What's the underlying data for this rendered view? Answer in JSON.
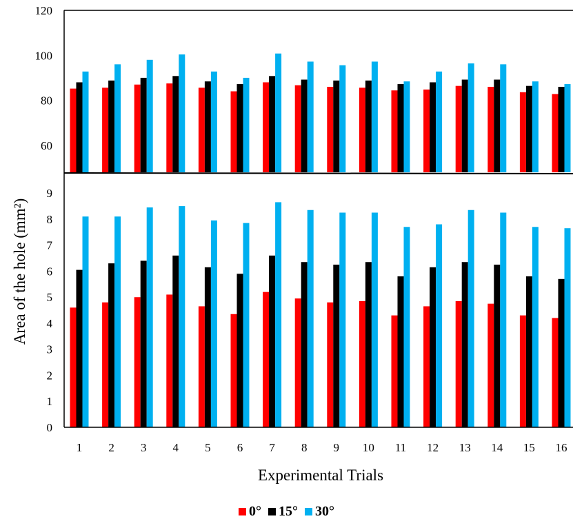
{
  "chart_data": [
    {
      "type": "bar",
      "panel": "upper",
      "categories": [
        "1",
        "2",
        "3",
        "4",
        "5",
        "6",
        "7",
        "8",
        "9",
        "10",
        "11",
        "12",
        "13",
        "14",
        "15",
        "16"
      ],
      "ylim": [
        48,
        120
      ],
      "yticks": [
        "60",
        "80",
        "100",
        "120"
      ],
      "series": [
        {
          "name": "0°",
          "color": "#ff0000",
          "values": [
            85.2,
            85.6,
            87.0,
            87.5,
            85.6,
            84.0,
            88.0,
            86.7,
            86.0,
            85.6,
            84.4,
            84.8,
            86.4,
            86.0,
            83.6,
            82.8
          ]
        },
        {
          "name": "15°",
          "color": "#000000",
          "values": [
            88.0,
            88.8,
            90.0,
            90.8,
            88.4,
            87.2,
            90.8,
            89.2,
            88.8,
            88.8,
            87.2,
            88.0,
            89.2,
            89.2,
            86.4,
            86.0
          ]
        },
        {
          "name": "30°",
          "color": "#00b0f0",
          "values": [
            92.8,
            96.0,
            98.0,
            100.4,
            92.8,
            90.0,
            100.8,
            97.2,
            95.6,
            97.2,
            88.4,
            92.8,
            96.4,
            96.0,
            88.4,
            87.2
          ]
        }
      ]
    },
    {
      "type": "bar",
      "panel": "lower",
      "categories": [
        "1",
        "2",
        "3",
        "4",
        "5",
        "6",
        "7",
        "8",
        "9",
        "10",
        "11",
        "12",
        "13",
        "14",
        "15",
        "16"
      ],
      "ylim": [
        0,
        9.8
      ],
      "yticks": [
        "0",
        "1",
        "2",
        "3",
        "4",
        "5",
        "6",
        "7",
        "8",
        "9"
      ],
      "series": [
        {
          "name": "0°",
          "color": "#ff0000",
          "values": [
            4.6,
            4.8,
            5.0,
            5.1,
            4.65,
            4.35,
            5.2,
            4.95,
            4.8,
            4.85,
            4.3,
            4.65,
            4.85,
            4.75,
            4.3,
            4.2
          ]
        },
        {
          "name": "15°",
          "color": "#000000",
          "values": [
            6.05,
            6.3,
            6.4,
            6.6,
            6.15,
            5.9,
            6.6,
            6.35,
            6.25,
            6.35,
            5.8,
            6.15,
            6.35,
            6.25,
            5.8,
            5.7
          ]
        },
        {
          "name": "30°",
          "color": "#00b0f0",
          "values": [
            8.1,
            8.1,
            8.45,
            8.5,
            7.95,
            7.85,
            8.65,
            8.35,
            8.25,
            8.25,
            7.7,
            7.8,
            8.35,
            8.25,
            7.7,
            7.65
          ]
        }
      ]
    }
  ],
  "xlabel": "Experimental Trials",
  "ylabel": "Area of the hole (mm²)",
  "legend": [
    {
      "label": "0°",
      "color": "#ff0000"
    },
    {
      "label": "15°",
      "color": "#000000"
    },
    {
      "label": "30°",
      "color": "#00b0f0"
    }
  ]
}
